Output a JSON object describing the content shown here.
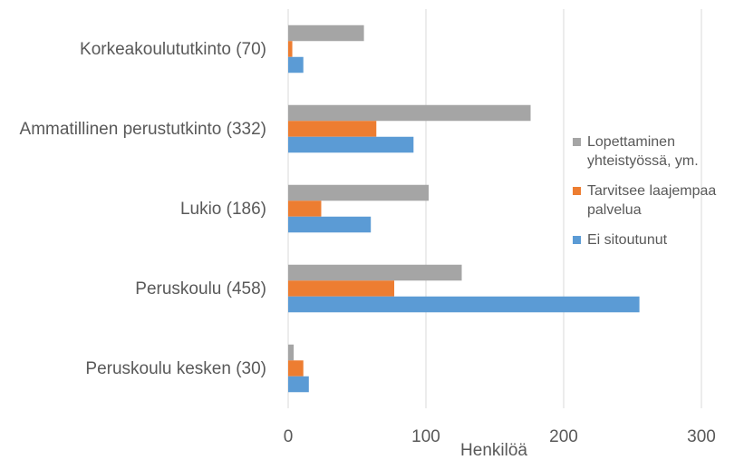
{
  "chart_data": {
    "type": "hbar",
    "categories": [
      "Korkeakoulututkinto (70)",
      "Ammatillinen perustutkinto (332)",
      "Lukio (186)",
      "Peruskoulu (458)",
      "Peruskoulu kesken (30)"
    ],
    "series": [
      {
        "name": "Lopettaminen yhteistyössä, ym.",
        "color": "#a5a5a5",
        "values": [
          55,
          176,
          102,
          126,
          4
        ]
      },
      {
        "name": "Tarvitsee laajempaa palvelua",
        "color": "#ed7d31",
        "values": [
          3,
          64,
          24,
          77,
          11
        ]
      },
      {
        "name": "Ei sitoutunut",
        "color": "#5b9bd5",
        "values": [
          11,
          91,
          60,
          255,
          15
        ]
      }
    ],
    "x_label": "Henkilöä",
    "xlim": [
      0,
      300
    ],
    "xticks": [
      0,
      100,
      200,
      300
    ],
    "grid": true
  }
}
